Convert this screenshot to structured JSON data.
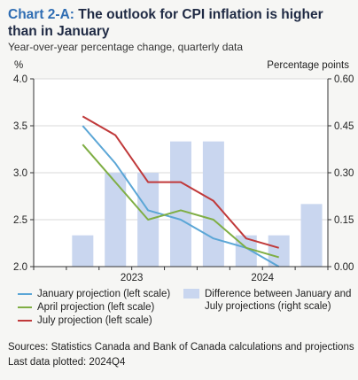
{
  "header": {
    "chart_number": "Chart 2-A:",
    "title": "The outlook for CPI inflation is higher than in January",
    "subtitle": "Year-over-year percentage change, quarterly data"
  },
  "axes": {
    "left_unit": "%",
    "right_unit": "Percentage points"
  },
  "colors": {
    "january": "#5ba6d6",
    "april": "#7fae44",
    "july": "#c0393a",
    "bars": "#c9d6ef"
  },
  "chart_data": {
    "type": "bar+line",
    "categories": [
      "2022Q4",
      "2023Q1",
      "2023Q2",
      "2023Q3",
      "2023Q4",
      "2024Q1",
      "2024Q2",
      "2024Q3",
      "2024Q4"
    ],
    "x_tick_labels": [
      {
        "label": "2023",
        "between": [
          "2023Q2",
          "2023Q3"
        ]
      },
      {
        "label": "2024",
        "between": [
          "2024Q2",
          "2024Q3"
        ]
      }
    ],
    "left_axis": {
      "ylim": [
        2.0,
        4.0
      ],
      "ticks": [
        "2.0",
        "2.5",
        "3.0",
        "3.5",
        "4.0"
      ]
    },
    "right_axis": {
      "ylim": [
        0.0,
        0.6
      ],
      "ticks": [
        "0.00",
        "0.15",
        "0.30",
        "0.45",
        "0.60"
      ]
    },
    "bars": {
      "name": "Difference between January and July projections (right scale)",
      "axis": "right",
      "values": [
        null,
        0.1,
        0.3,
        0.3,
        0.4,
        0.4,
        0.1,
        0.1,
        0.2
      ]
    },
    "series": [
      {
        "name": "January projection (left scale)",
        "axis": "left",
        "color_key": "january",
        "values": [
          null,
          3.5,
          3.1,
          2.6,
          2.5,
          2.3,
          2.2,
          2.0,
          null
        ]
      },
      {
        "name": "April projection (left scale)",
        "axis": "left",
        "color_key": "april",
        "values": [
          null,
          3.3,
          2.9,
          2.5,
          2.6,
          2.5,
          2.2,
          2.1,
          null
        ]
      },
      {
        "name": "July projection (left scale)",
        "axis": "left",
        "color_key": "july",
        "values": [
          null,
          3.6,
          3.4,
          2.9,
          2.9,
          2.7,
          2.3,
          2.2,
          null
        ]
      }
    ],
    "grid": "horizontal"
  },
  "legend": {
    "january": "January projection (left scale)",
    "april": "April projection (left scale)",
    "july": "July projection (left scale)",
    "bars": "Difference between January and July projections (right scale)"
  },
  "footer": {
    "sources": "Sources: Statistics Canada and Bank of Canada calculations and projections",
    "last_data": "Last data plotted: 2024Q4"
  }
}
